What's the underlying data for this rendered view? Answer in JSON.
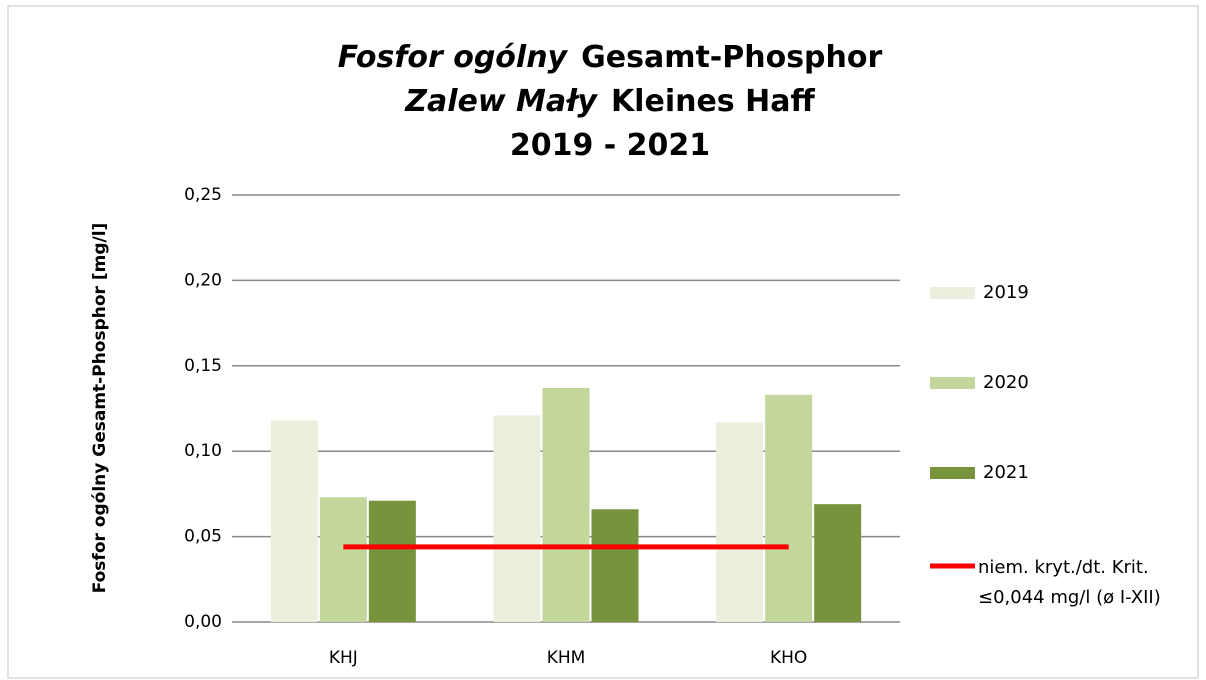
{
  "chart_data": {
    "type": "bar",
    "title": [
      [
        "Fosfor ogólny",
        "Gesamt-Phosphor"
      ],
      [
        "Zalew Mały",
        "Kleines Haff"
      ],
      [
        "2019 - 2021"
      ]
    ],
    "y_label": "Fosfor ogólny  Gesamt-Phosphor  [mg/l]",
    "categories": [
      "KHJ",
      "KHM",
      "KHO"
    ],
    "series": [
      {
        "name": "2019",
        "color": "#ebf0de",
        "values": [
          0.118,
          0.121,
          0.117
        ]
      },
      {
        "name": "2020",
        "color": "#c3d69b",
        "values": [
          0.073,
          0.137,
          0.133
        ]
      },
      {
        "name": "2021",
        "color": "#77933c",
        "values": [
          0.071,
          0.066,
          0.069
        ]
      }
    ],
    "reference_line": {
      "name": [
        "niem. kryt./dt. Krit.",
        "≤0,044 mg/l (ø I-XII)"
      ],
      "value": 0.044,
      "color": "#ff0000"
    },
    "ylim": [
      0,
      0.25
    ],
    "yticks": [
      {
        "value": 0,
        "label": "0,00"
      },
      {
        "value": 0.05,
        "label": "0,05"
      },
      {
        "value": 0.1,
        "label": "0,10"
      },
      {
        "value": 0.15,
        "label": "0,15"
      },
      {
        "value": 0.2,
        "label": "0,20"
      },
      {
        "value": 0.25,
        "label": "0,25"
      }
    ],
    "grid": true,
    "legend": "right"
  }
}
